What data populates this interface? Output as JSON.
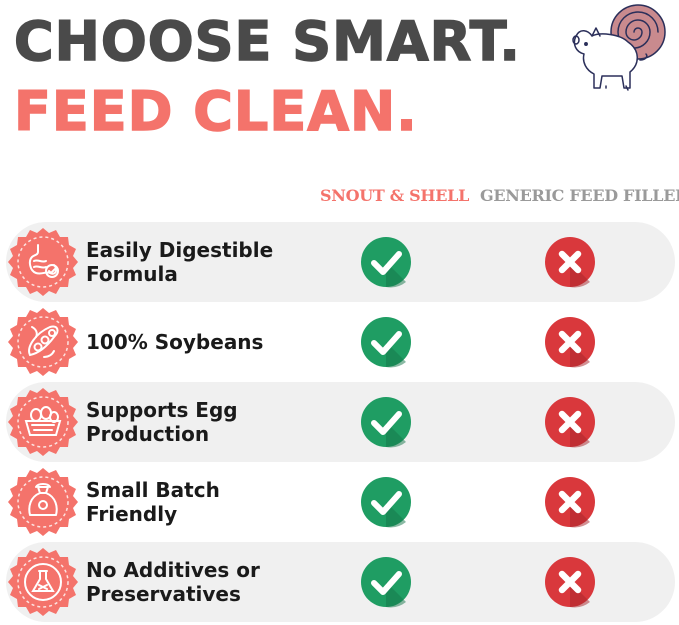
{
  "headline": {
    "line1": "CHOOSE SMART.",
    "line2": "FEED CLEAN."
  },
  "columns": {
    "ours": "SNOUT & SHELL",
    "theirs": "GENERIC FEED FILLER"
  },
  "colors": {
    "dark": "#4a4a4a",
    "accent": "#f4736b",
    "check_green": "#1f9d63",
    "cross_red": "#d9383c"
  },
  "rows": [
    {
      "label_line1": "Easily Digestible",
      "label_line2": "Formula",
      "icon": "stomach-icon",
      "ours": true,
      "theirs": false
    },
    {
      "label_line1": "100% Soybeans",
      "label_line2": "",
      "icon": "soybean-icon",
      "ours": true,
      "theirs": false
    },
    {
      "label_line1": "Supports Egg",
      "label_line2": "Production",
      "icon": "egg-basket-icon",
      "ours": true,
      "theirs": false
    },
    {
      "label_line1": "Small Batch",
      "label_line2": "Friendly",
      "icon": "feed-sack-icon",
      "ours": true,
      "theirs": false
    },
    {
      "label_line1": "No Additives or",
      "label_line2": "Preservatives",
      "icon": "no-additives-flask-icon",
      "ours": true,
      "theirs": false
    }
  ]
}
